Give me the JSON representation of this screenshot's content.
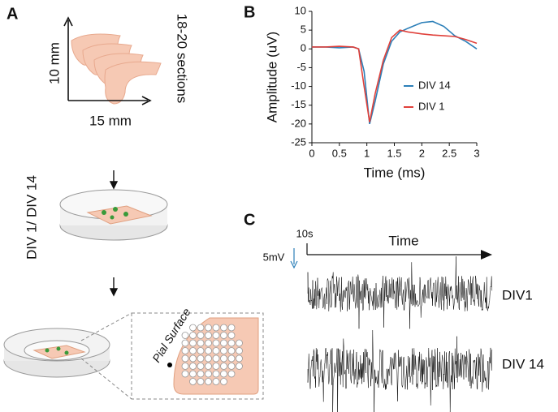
{
  "panel_a": {
    "label": "A",
    "sections": "18-20 sections",
    "height": "10 mm",
    "width": "15 mm",
    "culture": "DIV 1/ DIV 14",
    "surface": "Pial Surface"
  },
  "chart_data": {
    "type": "line",
    "label": "B",
    "x_label": "Time (ms)",
    "y_label": "Amplitude (uV)",
    "x": [
      0,
      0.25,
      0.5,
      0.75,
      0.85,
      0.95,
      1.05,
      1.15,
      1.3,
      1.45,
      1.6,
      1.75,
      2.0,
      2.2,
      2.4,
      2.6,
      2.8,
      3
    ],
    "series": [
      {
        "name": "DIV 14",
        "color": "#2c7fb8",
        "values": [
          0.5,
          0.5,
          0.3,
          0.5,
          0,
          -6,
          -20,
          -14,
          -4,
          2,
          4.5,
          5.5,
          7,
          7.3,
          6,
          3.5,
          2,
          0
        ]
      },
      {
        "name": "DIV 1",
        "color": "#e0403a",
        "values": [
          0.5,
          0.5,
          0.7,
          0.5,
          0,
          -10,
          -19.5,
          -12,
          -3,
          3,
          5,
          4.5,
          4,
          3.7,
          3.5,
          3.3,
          2.5,
          1.5
        ]
      }
    ],
    "xlim": [
      0,
      3
    ],
    "xticks": [
      0,
      0.5,
      1,
      1.5,
      2,
      2.5,
      3
    ],
    "ylim": [
      -25,
      10
    ],
    "yticks": [
      -25,
      -20,
      -15,
      -10,
      -5,
      0,
      5,
      10
    ],
    "legend": "right"
  },
  "panel_c": {
    "label": "C",
    "time_scale": "10s",
    "volt_scale": "5mV",
    "axis": "Time",
    "trace_1": "DIV1",
    "trace_2": "DIV 14"
  }
}
